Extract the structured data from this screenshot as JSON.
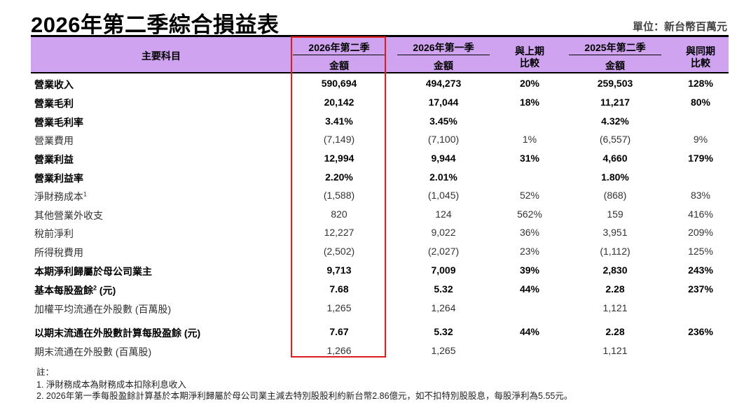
{
  "title": "2026年第二季綜合損益表",
  "unit": "單位：新台幣百萬元",
  "header": {
    "item": "主要科目",
    "col1_top": "2026年第二季",
    "col1_bottom": "金額",
    "col2_top": "2026年第一季",
    "col2_bottom": "金額",
    "qoq_top": "與上期",
    "qoq_bottom": "比較",
    "col3_top": "2025年第二季",
    "col3_bottom": "金額",
    "yoy_top": "與同期",
    "yoy_bottom": "比較"
  },
  "rows": [
    {
      "label": "營業收入",
      "q2_26": "590,694",
      "q1_26": "494,273",
      "qoq": "20%",
      "q2_25": "259,503",
      "yoy": "128%"
    },
    {
      "label": "營業毛利",
      "q2_26": "20,142",
      "q1_26": "17,044",
      "qoq": "18%",
      "q2_25": "11,217",
      "yoy": "80%"
    },
    {
      "label": "營業毛利率",
      "q2_26": "3.41%",
      "q1_26": "3.45%",
      "qoq": "",
      "q2_25": "4.32%",
      "yoy": ""
    },
    {
      "label": "營業費用",
      "q2_26": "(7,149)",
      "q1_26": "(7,100)",
      "qoq": "1%",
      "q2_25": "(6,557)",
      "yoy": "9%"
    },
    {
      "label": "營業利益",
      "q2_26": "12,994",
      "q1_26": "9,944",
      "qoq": "31%",
      "q2_25": "4,660",
      "yoy": "179%"
    },
    {
      "label": "營業利益率",
      "q2_26": "2.20%",
      "q1_26": "2.01%",
      "qoq": "",
      "q2_25": "1.80%",
      "yoy": ""
    },
    {
      "label": "淨財務成本",
      "sup": "1",
      "q2_26": "(1,588)",
      "q1_26": "(1,045)",
      "qoq": "52%",
      "q2_25": "(868)",
      "yoy": "83%"
    },
    {
      "label": "其他營業外收支",
      "q2_26": "820",
      "q1_26": "124",
      "qoq": "562%",
      "q2_25": "159",
      "yoy": "416%"
    },
    {
      "label": "稅前淨利",
      "q2_26": "12,227",
      "q1_26": "9,022",
      "qoq": "36%",
      "q2_25": "3,951",
      "yoy": "209%"
    },
    {
      "label": "所得稅費用",
      "q2_26": "(2,502)",
      "q1_26": "(2,027)",
      "qoq": "23%",
      "q2_25": "(1,112)",
      "yoy": "125%"
    },
    {
      "label": "本期淨利歸屬於母公司業主",
      "q2_26": "9,713",
      "q1_26": "7,009",
      "qoq": "39%",
      "q2_25": "2,830",
      "yoy": "243%"
    },
    {
      "label": "基本每股盈餘",
      "sup": "2",
      "suffix": " (元)",
      "q2_26": "7.68",
      "q1_26": "5.32",
      "qoq": "44%",
      "q2_25": "2.28",
      "yoy": "237%"
    },
    {
      "label": "加權平均流通在外股數 (百萬股)",
      "q2_26": "1,265",
      "q1_26": "1,264",
      "qoq": "",
      "q2_25": "1,121",
      "yoy": ""
    },
    {
      "label": "以期末流通在外股數計算每股盈餘 (元)",
      "q2_26": "7.67",
      "q1_26": "5.32",
      "qoq": "44%",
      "q2_25": "2.28",
      "yoy": "236%"
    },
    {
      "label": "期末流通在外股數 (百萬股)",
      "q2_26": "1,266",
      "q1_26": "1,265",
      "qoq": "",
      "q2_25": "1,121",
      "yoy": ""
    }
  ],
  "notes": {
    "heading": "註：",
    "items": [
      "1.   淨財務成本為財務成本扣除利息收入",
      "2.   2026年第一季每股盈餘計算基於本期淨利歸屬於母公司業主減去特別股股利約新台幣2.86億元，如不扣特別股股息，每股淨利為5.55元。"
    ]
  },
  "colors": {
    "header_bg": "#cfa3ef",
    "highlight_border": "#e01c1c"
  }
}
